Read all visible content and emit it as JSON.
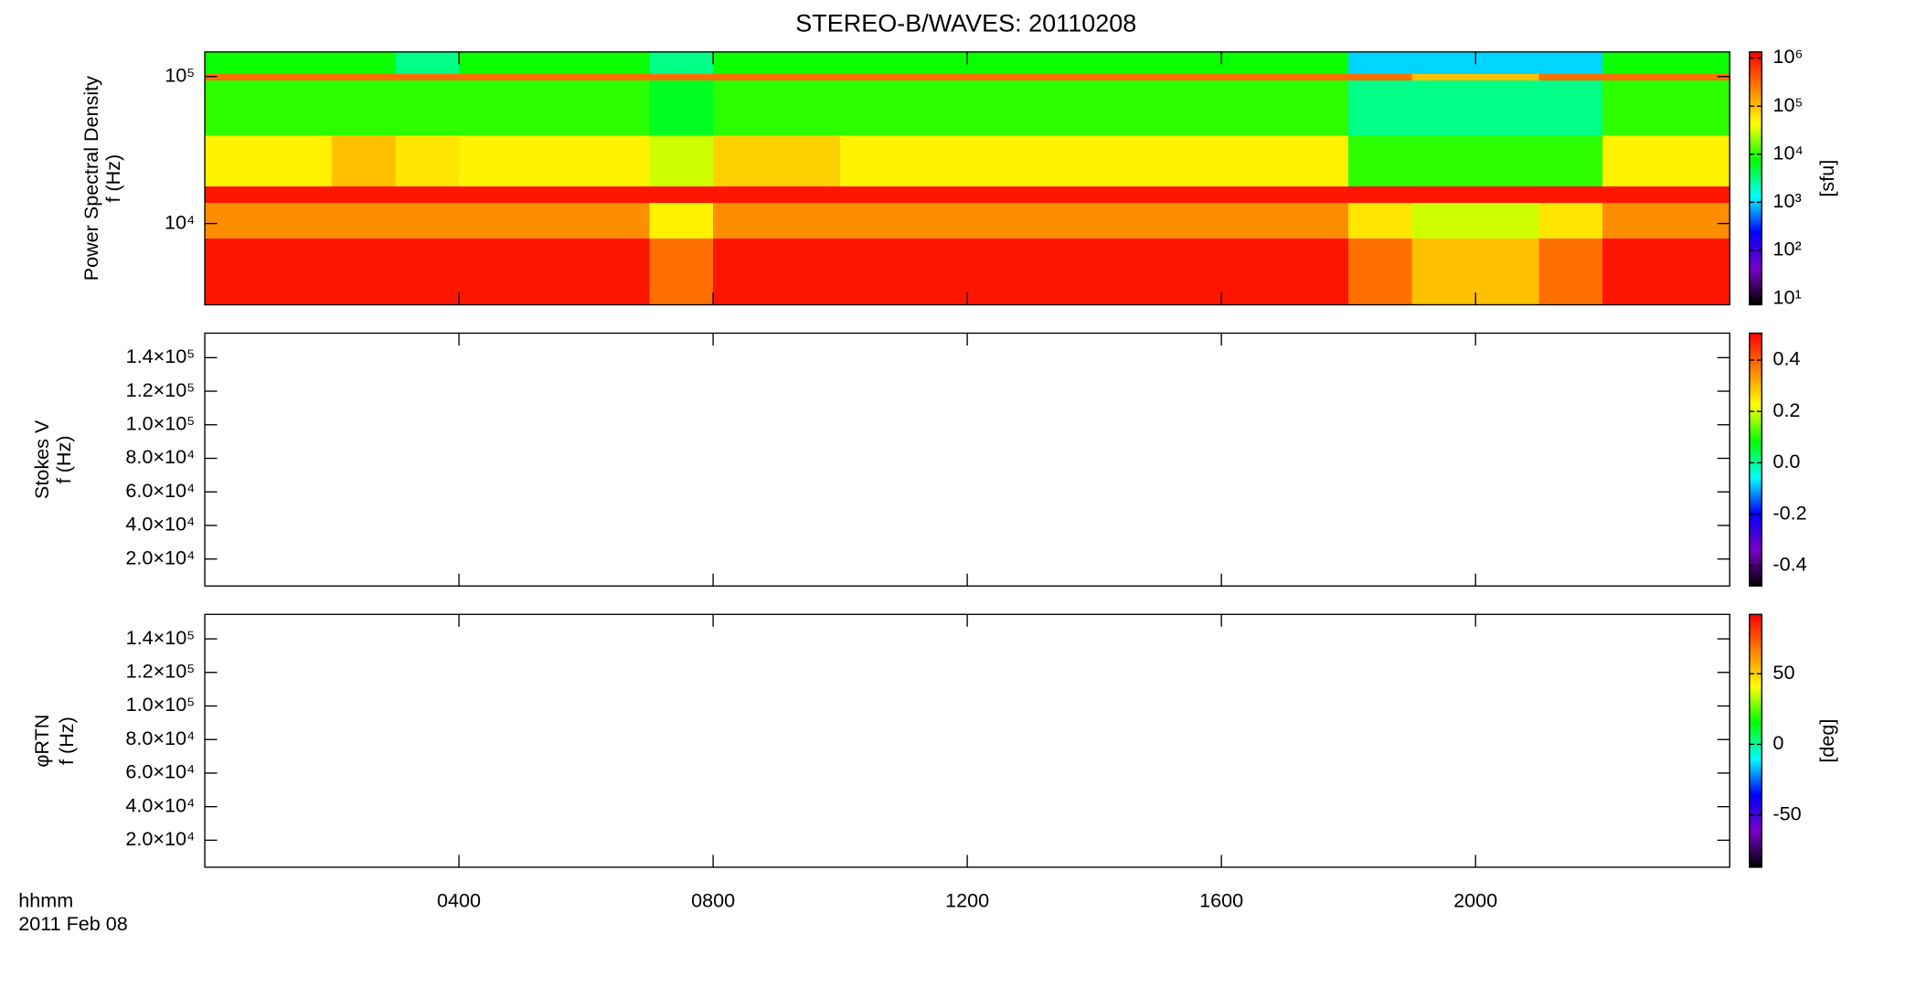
{
  "title": "STEREO-B/WAVES: 20110208",
  "x_axis": {
    "label": "hhmm",
    "date": "2011 Feb 08",
    "xlim": [
      0,
      24
    ],
    "xticks": [
      {
        "value": 4,
        "label": "0400"
      },
      {
        "value": 8,
        "label": "0800"
      },
      {
        "value": 12,
        "label": "1200"
      },
      {
        "value": 16,
        "label": "1600"
      },
      {
        "value": 20,
        "label": "2000"
      }
    ]
  },
  "colormap": [
    "#000000",
    "#7a00c8",
    "#0000ff",
    "#00ffff",
    "#00ff00",
    "#ffff00",
    "#ff8000",
    "#ff0000"
  ],
  "chart_data": [
    {
      "type": "heatmap",
      "ylabel": [
        "Power Spectral Density",
        "f (Hz)"
      ],
      "ylog": true,
      "ylim": [
        2800,
        147000
      ],
      "yticks": [
        {
          "value": 10000,
          "label": "10⁴"
        },
        {
          "value": 100000,
          "label": "10⁵"
        }
      ],
      "x_bins": [
        0,
        1,
        2,
        3,
        4,
        5,
        6,
        7,
        8,
        9,
        10,
        11,
        12,
        13,
        14,
        15,
        16,
        17,
        18,
        19,
        20,
        21,
        22,
        23,
        24
      ],
      "y_bins": [
        2800,
        8000,
        14000,
        18000,
        40000,
        95000,
        105000,
        147000
      ],
      "z": [
        [
          1000000,
          1000000,
          1000000,
          1000000,
          1000000,
          1000000,
          1000000,
          300000,
          1000000,
          1000000,
          1000000,
          1000000,
          1000000,
          1000000,
          1000000,
          1000000,
          1000000,
          1000000,
          300000,
          100000,
          100000,
          300000,
          1000000,
          1000000
        ],
        [
          200000,
          200000,
          200000,
          200000,
          200000,
          200000,
          200000,
          50000,
          200000,
          200000,
          200000,
          200000,
          200000,
          200000,
          200000,
          200000,
          200000,
          200000,
          60000,
          30000,
          30000,
          60000,
          200000,
          200000
        ],
        [
          1000000,
          1000000,
          1000000,
          1000000,
          1000000,
          1000000,
          1000000,
          1000000,
          1000000,
          1000000,
          1000000,
          1000000,
          1000000,
          1000000,
          1000000,
          1000000,
          1000000,
          1000000,
          1000000,
          1000000,
          1000000,
          1000000,
          1000000,
          1000000
        ],
        [
          50000,
          50000,
          100000,
          60000,
          50000,
          50000,
          50000,
          30000,
          80000,
          80000,
          50000,
          50000,
          50000,
          50000,
          50000,
          50000,
          50000,
          50000,
          10000,
          10000,
          10000,
          10000,
          50000,
          50000
        ],
        [
          10000,
          10000,
          10000,
          10000,
          10000,
          10000,
          10000,
          6000,
          10000,
          10000,
          10000,
          10000,
          10000,
          10000,
          10000,
          10000,
          10000,
          10000,
          3000,
          3000,
          3000,
          3000,
          10000,
          10000
        ],
        [
          300000,
          300000,
          300000,
          300000,
          300000,
          300000,
          300000,
          300000,
          300000,
          300000,
          300000,
          300000,
          300000,
          300000,
          300000,
          300000,
          300000,
          300000,
          300000,
          100000,
          100000,
          300000,
          300000,
          300000
        ],
        [
          8000,
          8000,
          8000,
          3000,
          8000,
          8000,
          8000,
          3000,
          8000,
          8000,
          8000,
          8000,
          8000,
          8000,
          8000,
          8000,
          8000,
          8000,
          1000,
          1000,
          1000,
          1000,
          8000,
          8000
        ]
      ],
      "clog": true,
      "clim": [
        7.4,
        1340000
      ],
      "cticks": [
        {
          "value": 10,
          "label": "10¹"
        },
        {
          "value": 100,
          "label": "10²"
        },
        {
          "value": 1000,
          "label": "10³"
        },
        {
          "value": 10000,
          "label": "10⁴"
        },
        {
          "value": 100000,
          "label": "10⁵"
        },
        {
          "value": 1000000,
          "label": "10⁶"
        }
      ],
      "clabel": "[sfu]"
    },
    {
      "type": "heatmap",
      "ylabel": [
        "Stokes V",
        "f (Hz)"
      ],
      "ylog": false,
      "ylim": [
        3900,
        154600
      ],
      "yticks": [
        {
          "value": 20000,
          "label": "2.0×10⁴"
        },
        {
          "value": 40000,
          "label": "4.0×10⁴"
        },
        {
          "value": 60000,
          "label": "6.0×10⁴"
        },
        {
          "value": 80000,
          "label": "8.0×10⁴"
        },
        {
          "value": 100000,
          "label": "1.0×10⁵"
        },
        {
          "value": 120000,
          "label": "1.2×10⁵"
        },
        {
          "value": 140000,
          "label": "1.4×10⁵"
        }
      ],
      "clog": false,
      "clim": [
        -0.48,
        0.505
      ],
      "cticks": [
        -0.4,
        -0.2,
        {
          "value": 0,
          "label": "0.0"
        },
        0.2,
        0.4
      ]
    },
    {
      "type": "heatmap",
      "ylabel": [
        "φRTN",
        "f (Hz)"
      ],
      "ylog": false,
      "ylim": [
        3900,
        154600
      ],
      "yticks": [
        {
          "value": 20000,
          "label": "2.0×10⁴"
        },
        {
          "value": 40000,
          "label": "4.0×10⁴"
        },
        {
          "value": 60000,
          "label": "6.0×10⁴"
        },
        {
          "value": 80000,
          "label": "8.0×10⁴"
        },
        {
          "value": 100000,
          "label": "1.0×10⁵"
        },
        {
          "value": 120000,
          "label": "1.2×10⁵"
        },
        {
          "value": 140000,
          "label": "1.4×10⁵"
        }
      ],
      "clog": false,
      "clim": [
        -87,
        92
      ],
      "cticks": [
        -50,
        0,
        50
      ],
      "clabel": "[deg]"
    }
  ]
}
